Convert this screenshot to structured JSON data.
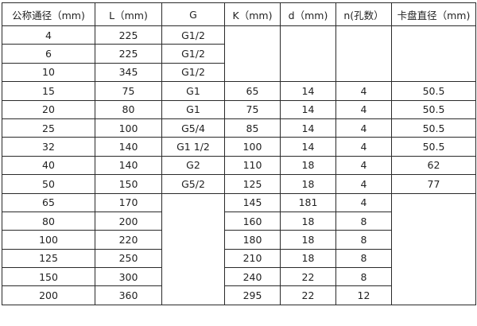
{
  "headers": [
    "公称通径（mm)",
    "L（mm)",
    "G",
    "K（mm)",
    "d（mm)",
    "n(孔数）",
    "卡盘直径（mm)"
  ],
  "rows": [
    {
      "dn": "4",
      "L": "225",
      "G": "G1/2"
    },
    {
      "dn": "6",
      "L": "225",
      "G": "G1/2"
    },
    {
      "dn": "10",
      "L": "345",
      "G": "G1/2"
    },
    {
      "dn": "15",
      "L": "75",
      "G": "G1",
      "K": "65",
      "d": "14",
      "n": "4",
      "chuck": "50.5"
    },
    {
      "dn": "20",
      "L": "80",
      "G": "G1",
      "K": "75",
      "d": "14",
      "n": "4",
      "chuck": "50.5"
    },
    {
      "dn": "25",
      "L": "100",
      "G": "G5/4",
      "K": "85",
      "d": "14",
      "n": "4",
      "chuck": "50.5"
    },
    {
      "dn": "32",
      "L": "140",
      "G": "G1  1/2",
      "K": "100",
      "d": "14",
      "n": "4",
      "chuck": "50.5"
    },
    {
      "dn": "40",
      "L": "140",
      "G": "G2",
      "K": "110",
      "d": "18",
      "n": "4",
      "chuck": "62"
    },
    {
      "dn": "50",
      "L": "150",
      "G": "G5/2",
      "K": "125",
      "d": "18",
      "n": "4",
      "chuck": "77"
    },
    {
      "dn": "65",
      "L": "170",
      "K": "145",
      "d": "181",
      "n": "4"
    },
    {
      "dn": "80",
      "L": "200",
      "K": "160",
      "d": "18",
      "n": "8"
    },
    {
      "dn": "100",
      "L": "220",
      "K": "180",
      "d": "18",
      "n": "8"
    },
    {
      "dn": "125",
      "L": "250",
      "K": "210",
      "d": "18",
      "n": "8"
    },
    {
      "dn": "150",
      "L": "300",
      "K": "240",
      "d": "22",
      "n": "8"
    },
    {
      "dn": "200",
      "L": "360",
      "K": "295",
      "d": "22",
      "n": "12"
    }
  ]
}
